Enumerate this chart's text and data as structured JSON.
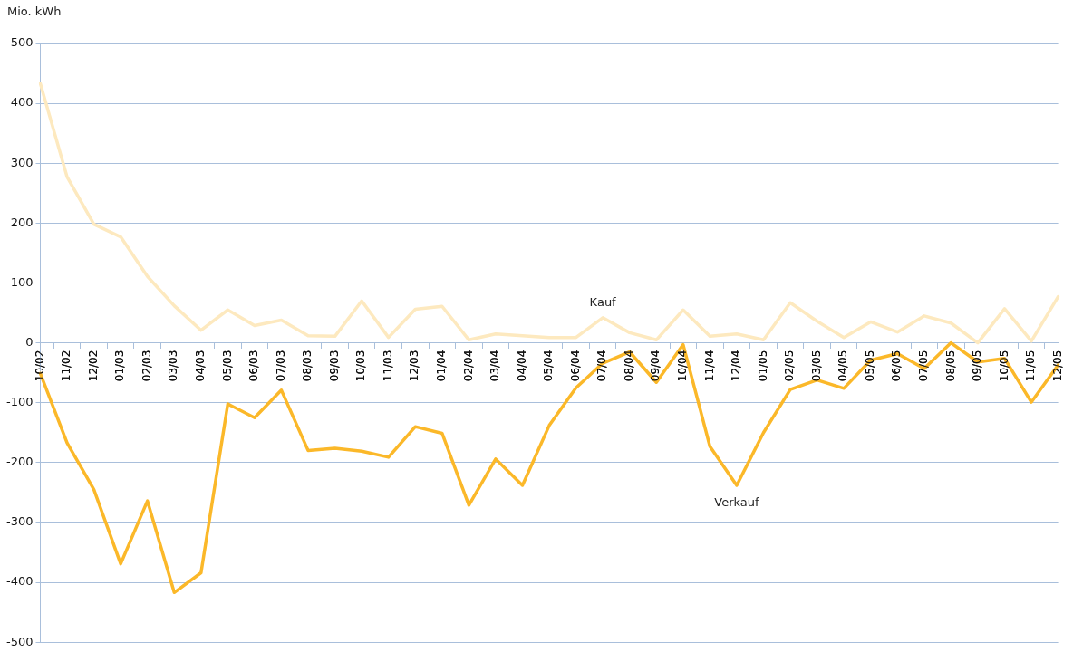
{
  "chart_data": {
    "type": "line",
    "ylabel": "Mio. kWh",
    "categories": [
      "10/02",
      "11/02",
      "12/02",
      "01/03",
      "02/03",
      "03/03",
      "04/03",
      "05/03",
      "06/03",
      "07/03",
      "08/03",
      "09/03",
      "10/03",
      "11/03",
      "12/03",
      "01/04",
      "02/04",
      "03/04",
      "04/04",
      "05/04",
      "06/04",
      "07/04",
      "08/04",
      "09/04",
      "10/04",
      "11/04",
      "12/04",
      "01/05",
      "02/05",
      "03/05",
      "04/05",
      "05/05",
      "06/05",
      "07/05",
      "08/05",
      "09/05",
      "10/05",
      "11/05",
      "12/05"
    ],
    "series": [
      {
        "name": "Kauf",
        "color": "#fde9bf",
        "values": [
          433,
          277,
          198,
          177,
          111,
          62,
          21,
          55,
          29,
          38,
          12,
          11,
          70,
          9,
          56,
          61,
          5,
          15,
          12,
          9,
          9,
          42,
          17,
          5,
          55,
          11,
          15,
          5,
          67,
          36,
          9,
          35,
          18,
          45,
          33,
          0,
          57,
          3,
          77
        ]
      },
      {
        "name": "Verkauf",
        "color": "#fbb829",
        "values": [
          -51,
          -167,
          -245,
          -369,
          -264,
          -417,
          -384,
          -102,
          -125,
          -79,
          -180,
          -176,
          -181,
          -191,
          -140,
          -151,
          -271,
          -194,
          -238,
          -138,
          -75,
          -34,
          -15,
          -66,
          -3,
          -173,
          -238,
          -150,
          -78,
          -62,
          -76,
          -29,
          -18,
          -43,
          0,
          -32,
          -26,
          -99,
          -37
        ]
      }
    ],
    "ylim": [
      -500,
      500
    ],
    "yticks": [
      -500,
      -400,
      -300,
      -200,
      -100,
      0,
      100,
      200,
      300,
      400,
      500
    ],
    "grid": "y",
    "legend": false,
    "marker": "none",
    "line_style": "solid"
  }
}
